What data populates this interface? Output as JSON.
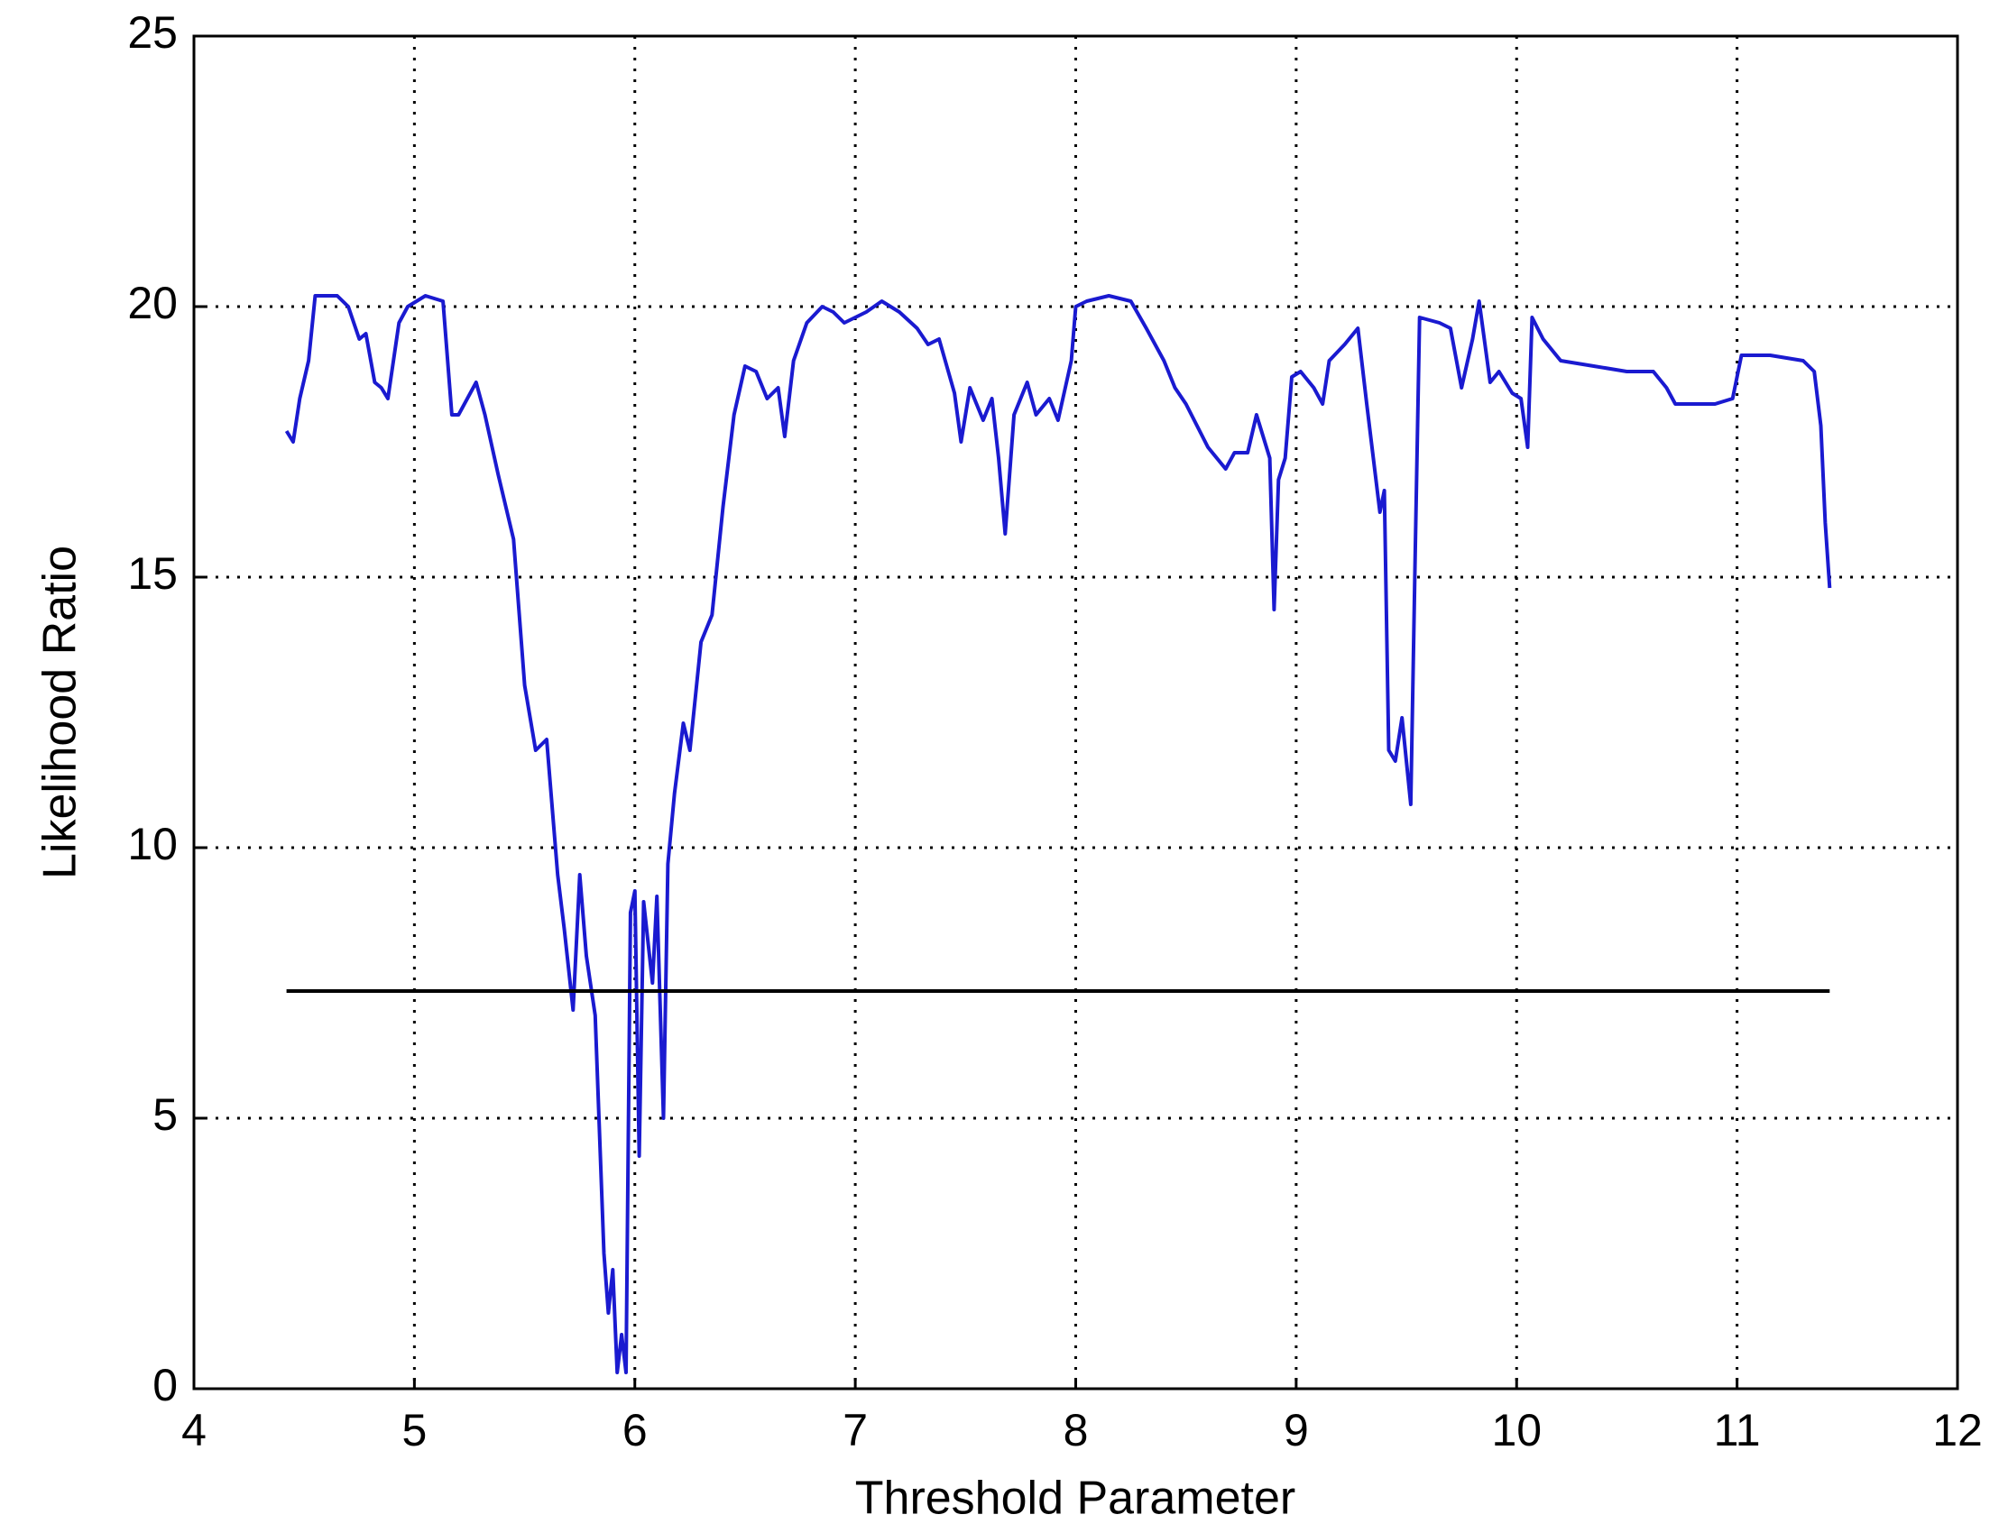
{
  "chart_data": {
    "type": "line",
    "x_label": "Threshold Parameter",
    "y_label": "Likelihood Ratio",
    "xlim": [
      4,
      12
    ],
    "xticks": [
      4,
      5,
      6,
      7,
      8,
      9,
      10,
      11,
      12
    ],
    "ylim": [
      0,
      25
    ],
    "yticks": [
      0,
      5,
      10,
      15,
      20,
      25
    ],
    "grid": true,
    "series": [
      {
        "color": "#1a1ad0",
        "x": [
          4.42,
          4.45,
          4.48,
          4.52,
          4.55,
          4.65,
          4.7,
          4.75,
          4.78,
          4.82,
          4.85,
          4.88,
          4.93,
          4.97,
          5.05,
          5.13,
          5.17,
          5.2,
          5.28,
          5.32,
          5.38,
          5.45,
          5.5,
          5.55,
          5.6,
          5.65,
          5.68,
          5.72,
          5.75,
          5.78,
          5.82,
          5.86,
          5.88,
          5.9,
          5.92,
          5.94,
          5.96,
          5.98,
          6.0,
          6.02,
          6.04,
          6.08,
          6.1,
          6.13,
          6.15,
          6.18,
          6.22,
          6.25,
          6.3,
          6.35,
          6.4,
          6.45,
          6.5,
          6.55,
          6.6,
          6.65,
          6.68,
          6.72,
          6.78,
          6.85,
          6.9,
          6.95,
          7.0,
          7.05,
          7.12,
          7.2,
          7.28,
          7.33,
          7.38,
          7.45,
          7.48,
          7.52,
          7.58,
          7.62,
          7.65,
          7.68,
          7.72,
          7.78,
          7.82,
          7.88,
          7.92,
          7.98,
          8.0,
          8.05,
          8.15,
          8.25,
          8.32,
          8.4,
          8.45,
          8.5,
          8.55,
          8.6,
          8.68,
          8.72,
          8.78,
          8.82,
          8.88,
          8.9,
          8.92,
          8.95,
          8.98,
          9.02,
          9.08,
          9.12,
          9.15,
          9.22,
          9.28,
          9.32,
          9.38,
          9.4,
          9.42,
          9.45,
          9.48,
          9.52,
          9.54,
          9.56,
          9.65,
          9.7,
          9.75,
          9.8,
          9.83,
          9.88,
          9.92,
          9.98,
          10.02,
          10.05,
          10.07,
          10.12,
          10.2,
          10.35,
          10.5,
          10.62,
          10.68,
          10.72,
          10.9,
          10.98,
          11.02,
          11.15,
          11.3,
          11.35,
          11.38,
          11.4,
          11.42
        ],
        "values": [
          17.7,
          17.5,
          18.3,
          19.0,
          20.2,
          20.2,
          20.0,
          19.4,
          19.5,
          18.6,
          18.5,
          18.3,
          19.7,
          20.0,
          20.2,
          20.1,
          18.0,
          18.0,
          18.6,
          18.0,
          16.9,
          15.7,
          13.0,
          11.8,
          12.0,
          9.5,
          8.5,
          7.0,
          9.5,
          8.0,
          6.9,
          2.5,
          1.4,
          2.2,
          0.3,
          1.0,
          0.3,
          8.8,
          9.2,
          4.3,
          9.0,
          7.5,
          9.1,
          5.0,
          9.7,
          11.0,
          12.3,
          11.8,
          13.8,
          14.3,
          16.3,
          18.0,
          18.9,
          18.8,
          18.3,
          18.5,
          17.6,
          19.0,
          19.7,
          20.0,
          19.9,
          19.7,
          19.8,
          19.9,
          20.1,
          19.9,
          19.6,
          19.3,
          19.4,
          18.4,
          17.5,
          18.5,
          17.9,
          18.3,
          17.2,
          15.8,
          18.0,
          18.6,
          18.0,
          18.3,
          17.9,
          19.0,
          20.0,
          20.1,
          20.2,
          20.1,
          19.6,
          19.0,
          18.5,
          18.2,
          17.8,
          17.4,
          17.0,
          17.3,
          17.3,
          18.0,
          17.2,
          14.4,
          16.8,
          17.2,
          18.7,
          18.8,
          18.5,
          18.2,
          19.0,
          19.3,
          19.6,
          18.2,
          16.2,
          16.6,
          11.8,
          11.6,
          12.4,
          10.8,
          15.4,
          19.8,
          19.7,
          19.6,
          18.5,
          19.4,
          20.1,
          18.6,
          18.8,
          18.4,
          18.3,
          17.4,
          19.8,
          19.4,
          19.0,
          18.9,
          18.8,
          18.8,
          18.5,
          18.2,
          18.2,
          18.3,
          19.1,
          19.1,
          19.0,
          18.8,
          17.8,
          16.0,
          14.8
        ]
      },
      {
        "color": "#000000",
        "x": [
          4.42,
          11.42
        ],
        "values": [
          7.35,
          7.35
        ]
      }
    ]
  }
}
